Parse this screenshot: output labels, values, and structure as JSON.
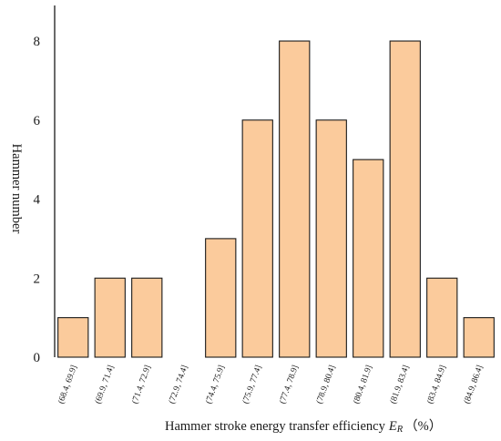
{
  "chart_data": {
    "type": "bar",
    "categories": [
      "(68.4, 69.9]",
      "(69.9, 71.4]",
      "(71.4, 72.9]",
      "(72.9, 74.4]",
      "(74.4, 75.9]",
      "(75.9, 77.4]",
      "(77.4, 78.9]",
      "(78.9, 80.4]",
      "(80.4, 81.9]",
      "(81.9, 83.4]",
      "(83.4, 84.9]",
      "(84.9, 86.4]"
    ],
    "values": [
      1,
      2,
      2,
      0,
      3,
      6,
      8,
      6,
      5,
      8,
      2,
      1
    ],
    "xlabel": "Hammer stroke energy transfer efficiency",
    "xlabel_symbol": "E",
    "xlabel_subscript": "R",
    "xlabel_unit": "（%）",
    "ylabel": "Hammer number",
    "yticks": [
      0,
      2,
      4,
      6,
      8
    ],
    "ylim": [
      0,
      8.9
    ],
    "bar_color": "#fbcb9c",
    "bar_edge_color": "#1a1a1a",
    "grid": false,
    "legend": "none"
  }
}
